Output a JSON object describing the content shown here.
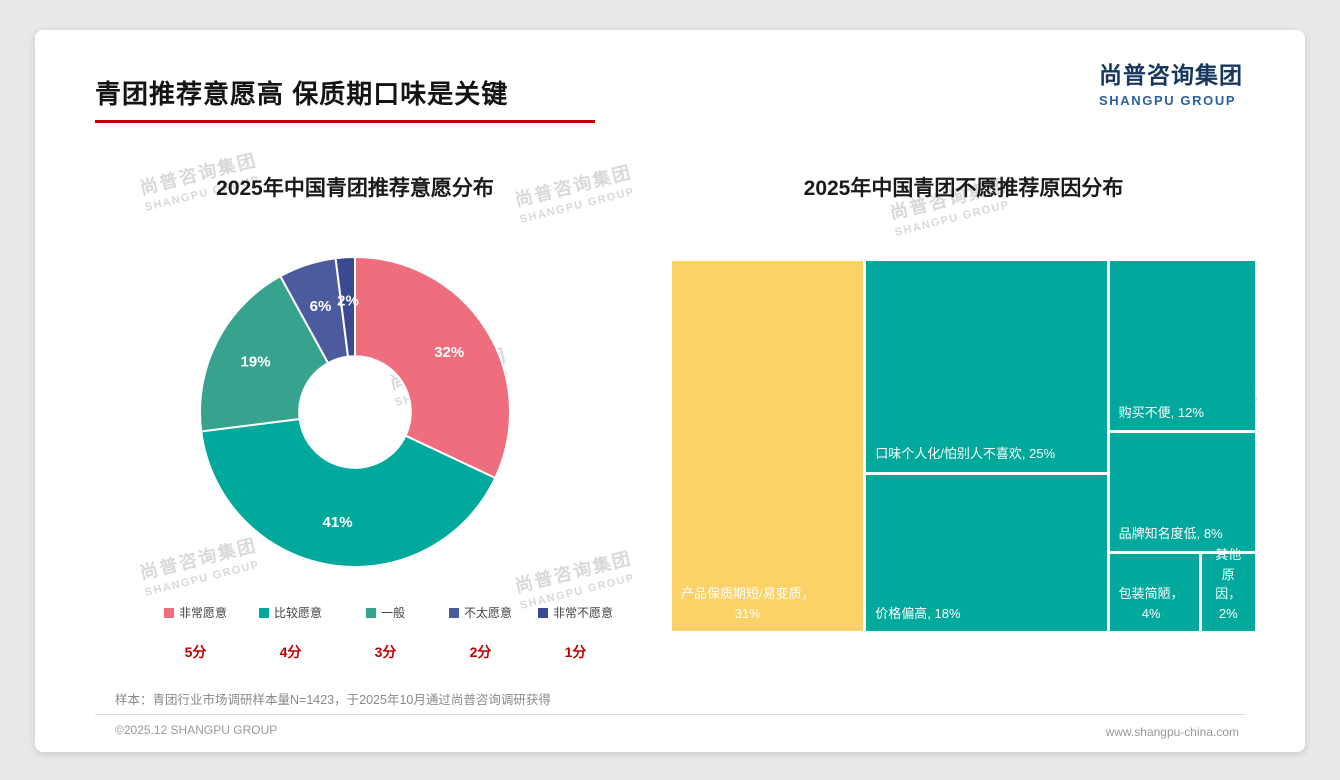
{
  "page": {
    "title": "青团推荐意愿高 保质期口味是关键",
    "logo": {
      "cn": "尚普咨询集团",
      "en": "SHANGPU GROUP"
    },
    "watermark": {
      "cn": "尚普咨询集团",
      "en": "SHANGPU GROUP"
    },
    "footnote": "样本：青团行业市场调研样本量N=1423，于2025年10月通过尚普咨询调研获得",
    "copyright": "©2025.12 SHANGPU GROUP",
    "website": "www.shangpu-china.com",
    "accent_red": "#c00000",
    "logo_navy": "#17375e",
    "logo_blue": "#2e5f9e"
  },
  "chart_data": [
    {
      "type": "pie",
      "subtype": "donut",
      "title": "2025年中国青团推荐意愿分布",
      "categories": [
        "非常愿意",
        "比较愿意",
        "一般",
        "不太愿意",
        "非常不愿意"
      ],
      "values": [
        32,
        41,
        19,
        6,
        2
      ],
      "value_labels": [
        "32%",
        "41%",
        "19%",
        "6%",
        "2%"
      ],
      "scores": [
        "5分",
        "4分",
        "3分",
        "2分",
        "1分"
      ],
      "colors": [
        "#ee6e7e",
        "#00a99c",
        "#37a28e",
        "#4c5b9d",
        "#3a4a92"
      ],
      "start_angle_deg": -90,
      "direction": "clockwise",
      "inner_radius_ratio": 0.36,
      "legend_position": "bottom"
    },
    {
      "type": "treemap",
      "title": "2025年中国青团不愿推荐原因分布",
      "layout": "columns",
      "items": [
        {
          "label": "产品保质期短/易变质",
          "value": 31,
          "display": "产品保质期短/易变质，\n31%",
          "color": "#fbd168"
        },
        {
          "label": "口味个人化/怕别人不喜欢",
          "value": 25,
          "display": "口味个人化/怕别人不喜欢, 25%",
          "color": "#00a99c"
        },
        {
          "label": "价格偏高",
          "value": 18,
          "display": "价格偏高, 18%",
          "color": "#00a99c"
        },
        {
          "label": "购买不便",
          "value": 12,
          "display": "购买不便, 12%",
          "color": "#00a99c"
        },
        {
          "label": "品牌知名度低",
          "value": 8,
          "display": "品牌知名度低, 8%",
          "color": "#00a99c"
        },
        {
          "label": "包装简陋",
          "value": 4,
          "display": "包装简陋，\n4%",
          "color": "#00a99c"
        },
        {
          "label": "其他原因",
          "value": 2,
          "display": "其他\n原因，\n2%",
          "color": "#00a99c"
        }
      ]
    }
  ]
}
